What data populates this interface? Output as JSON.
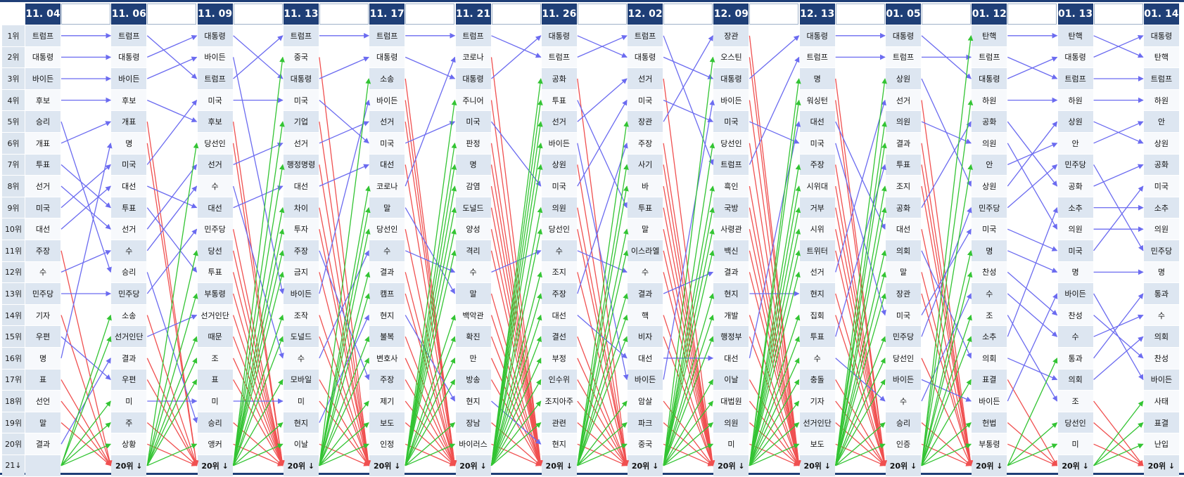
{
  "chart_data": {
    "type": "table",
    "title": "",
    "rank_labels": [
      "1위",
      "2위",
      "3위",
      "4위",
      "5위",
      "6위",
      "7위",
      "8위",
      "9위",
      "10위",
      "11위",
      "12위",
      "13위",
      "14위",
      "15위",
      "16위",
      "17위",
      "18위",
      "19위",
      "20위"
    ],
    "first_bottom_label": "21↓",
    "bottom_label": "20위 ↓",
    "columns": [
      {
        "date": "11. 04",
        "words": [
          "트럼프",
          "대통령",
          "바이든",
          "후보",
          "승리",
          "개표",
          "투표",
          "선거",
          "미국",
          "대선",
          "주장",
          "수",
          "민주당",
          "기자",
          "우편",
          "명",
          "표",
          "선언",
          "말",
          "결과"
        ]
      },
      {
        "date": "11. 06",
        "words": [
          "트럼프",
          "대통령",
          "바이든",
          "후보",
          "개표",
          "명",
          "미국",
          "대선",
          "투표",
          "선거",
          "수",
          "승리",
          "민주당",
          "소송",
          "선거인단",
          "결과",
          "우편",
          "미",
          "주",
          "상황"
        ]
      },
      {
        "date": "11. 09",
        "words": [
          "대통령",
          "바이든",
          "트럼프",
          "미국",
          "후보",
          "당선인",
          "선거",
          "수",
          "대선",
          "민주당",
          "당선",
          "투표",
          "부통령",
          "선거인단",
          "때문",
          "조",
          "표",
          "미",
          "승리",
          "앵커"
        ]
      },
      {
        "date": "11. 13",
        "words": [
          "트럼프",
          "중국",
          "대통령",
          "미국",
          "기업",
          "선거",
          "행정명령",
          "대선",
          "차이",
          "투자",
          "주장",
          "금지",
          "바이든",
          "조작",
          "도널드",
          "수",
          "모바일",
          "미",
          "현지",
          "이날"
        ]
      },
      {
        "date": "11. 17",
        "words": [
          "트럼프",
          "대통령",
          "소송",
          "바이든",
          "선거",
          "미국",
          "대선",
          "코로나",
          "말",
          "당선인",
          "수",
          "결과",
          "캠프",
          "현지",
          "불복",
          "변호사",
          "주장",
          "제기",
          "보도",
          "인정"
        ]
      },
      {
        "date": "11. 21",
        "words": [
          "트럼프",
          "코로나",
          "대통령",
          "주니어",
          "미국",
          "판정",
          "명",
          "감염",
          "도널드",
          "양성",
          "격리",
          "수",
          "말",
          "백악관",
          "확진",
          "만",
          "방송",
          "현지",
          "장남",
          "바이러스"
        ]
      },
      {
        "date": "11. 26",
        "words": [
          "대통령",
          "트럼프",
          "공화",
          "투표",
          "선거",
          "바이든",
          "상원",
          "미국",
          "의원",
          "당선인",
          "수",
          "조지",
          "주장",
          "대선",
          "결선",
          "부정",
          "인수위",
          "조지아주",
          "관련",
          "현지"
        ]
      },
      {
        "date": "12. 02",
        "words": [
          "트럼프",
          "대통령",
          "선거",
          "미국",
          "장관",
          "주장",
          "사기",
          "바",
          "투표",
          "말",
          "이스라엘",
          "수",
          "결과",
          "핵",
          "비자",
          "대선",
          "바이든",
          "암살",
          "파크",
          "중국"
        ]
      },
      {
        "date": "12. 09",
        "words": [
          "장관",
          "오스틴",
          "대통령",
          "바이든",
          "미국",
          "당선인",
          "트럼프",
          "흑인",
          "국방",
          "사령관",
          "백신",
          "결과",
          "현지",
          "개발",
          "행정부",
          "대선",
          "이날",
          "대법원",
          "의원",
          "미"
        ]
      },
      {
        "date": "12. 13",
        "words": [
          "대통령",
          "트럼프",
          "명",
          "워싱턴",
          "대선",
          "미국",
          "주장",
          "시위대",
          "거부",
          "시위",
          "트위터",
          "선거",
          "현지",
          "집회",
          "투표",
          "수",
          "충돌",
          "기자",
          "선거인단",
          "보도"
        ]
      },
      {
        "date": "01. 05",
        "words": [
          "대통령",
          "트럼프",
          "상원",
          "선거",
          "의원",
          "결과",
          "투표",
          "조지",
          "공화",
          "대선",
          "의회",
          "말",
          "장관",
          "미국",
          "민주당",
          "당선인",
          "바이든",
          "수",
          "승리",
          "인증"
        ]
      },
      {
        "date": "01. 12",
        "words": [
          "탄핵",
          "트럼프",
          "대통령",
          "하원",
          "공화",
          "의원",
          "안",
          "상원",
          "민주당",
          "미국",
          "명",
          "찬성",
          "수",
          "조",
          "소추",
          "의회",
          "표결",
          "바이든",
          "헌법",
          "부통령"
        ]
      },
      {
        "date": "01. 13",
        "words": [
          "탄핵",
          "대통령",
          "트럼프",
          "하원",
          "상원",
          "안",
          "민주당",
          "공화",
          "소추",
          "의원",
          "미국",
          "명",
          "바이든",
          "찬성",
          "수",
          "통과",
          "의회",
          "조",
          "당선인",
          "미"
        ]
      },
      {
        "date": "01. 14",
        "words": [
          "대통령",
          "탄핵",
          "트럼프",
          "하원",
          "안",
          "상원",
          "공화",
          "미국",
          "소추",
          "의원",
          "민주당",
          "명",
          "통과",
          "수",
          "의회",
          "찬성",
          "바이든",
          "사태",
          "표결",
          "난입"
        ]
      }
    ],
    "link_colors": {
      "moved": "#6b6bf0",
      "entered": "#33c433",
      "dropped": "#f05050"
    }
  }
}
